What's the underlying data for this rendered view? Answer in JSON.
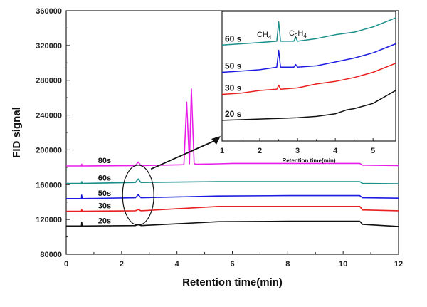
{
  "chart_data": [
    {
      "type": "line",
      "xlabel": "Retention time(min)",
      "ylabel": "FID signal",
      "xlim": [
        0,
        12
      ],
      "ylim": [
        80000,
        360000
      ],
      "xticks": [
        0,
        2,
        4,
        6,
        8,
        10,
        12
      ],
      "xtick_labels": [
        "0",
        "2",
        "4",
        "6",
        "8",
        "10",
        "12"
      ],
      "yticks": [
        80000,
        120000,
        160000,
        200000,
        240000,
        280000,
        320000,
        360000
      ],
      "ytick_labels": [
        "80000",
        "120000",
        "160000",
        "200000",
        "240000",
        "280000",
        "320000",
        "360000"
      ],
      "grid": false,
      "series": [
        {
          "name": "80s",
          "color": "#e81ee8",
          "x": [
            0,
            0.55,
            0.56,
            0.58,
            2.5,
            2.6,
            2.7,
            4.25,
            4.35,
            4.45,
            4.52,
            4.62,
            4.72,
            5.5,
            6,
            8,
            10,
            10.6,
            10.7,
            12
          ],
          "y": [
            181500,
            181500,
            183500,
            181500,
            182000,
            186000,
            182000,
            183000,
            255000,
            184000,
            270000,
            184000,
            183500,
            184000,
            184500,
            184500,
            184500,
            184500,
            182500,
            182000
          ]
        },
        {
          "name": "60s",
          "color": "#1a8f8a",
          "x": [
            0,
            0.55,
            0.56,
            0.58,
            2.5,
            2.6,
            2.7,
            5.5,
            8,
            10.6,
            10.7,
            12
          ],
          "y": [
            161500,
            161500,
            163500,
            161500,
            162500,
            166500,
            162500,
            163500,
            163500,
            163500,
            161500,
            161000
          ]
        },
        {
          "name": "50s",
          "color": "#1c1ce0",
          "x": [
            0,
            0.55,
            0.56,
            0.58,
            2.5,
            2.6,
            2.7,
            5.5,
            8,
            10.6,
            10.7,
            12
          ],
          "y": [
            144000,
            144000,
            148000,
            144000,
            145000,
            148500,
            145000,
            147000,
            147500,
            147500,
            145000,
            144500
          ]
        },
        {
          "name": "30s",
          "color": "#e82020",
          "x": [
            0,
            0.55,
            0.56,
            0.58,
            2.5,
            2.6,
            2.7,
            5.5,
            8,
            10.6,
            10.7,
            12
          ],
          "y": [
            129500,
            129500,
            131500,
            129500,
            130000,
            131500,
            130000,
            135000,
            135000,
            135000,
            131000,
            130000
          ]
        },
        {
          "name": "20s",
          "color": "#111111",
          "x": [
            0,
            0.55,
            0.56,
            0.58,
            2.5,
            2.6,
            2.7,
            5.5,
            8,
            10.6,
            10.7,
            12
          ],
          "y": [
            112500,
            112500,
            117000,
            112500,
            113000,
            114500,
            113000,
            117500,
            118000,
            118000,
            114500,
            112000
          ]
        }
      ]
    },
    {
      "type": "line",
      "xlabel": "Retention time(min)",
      "ylabel": "",
      "xlim": [
        1,
        5.6
      ],
      "xticks": [
        1,
        2,
        3,
        4,
        5
      ],
      "xtick_labels": [
        "1",
        "2",
        "3",
        "4",
        "5"
      ],
      "ylim": [
        0,
        100
      ],
      "peak_labels": [
        {
          "main": "CH",
          "sub": "4",
          "x": 2.3
        },
        {
          "main": "C",
          "sub1": "2",
          "mid": "H",
          "sub2": "4",
          "x": 3.3
        }
      ],
      "series": [
        {
          "name": "60 s",
          "color": "#1a8f8a",
          "x": [
            1,
            1.5,
            2,
            2.45,
            2.5,
            2.55,
            2.9,
            2.95,
            3.0,
            3.5,
            4,
            4.5,
            5,
            5.6
          ],
          "y": [
            74,
            75,
            76,
            77,
            92,
            77,
            77,
            80,
            77,
            79,
            82,
            84,
            88,
            95
          ]
        },
        {
          "name": "50 s",
          "color": "#1c1ce0",
          "x": [
            1,
            1.5,
            2,
            2.45,
            2.5,
            2.55,
            2.9,
            2.95,
            3.0,
            3.5,
            4,
            4.5,
            5,
            5.6
          ],
          "y": [
            53,
            54,
            55,
            57,
            70,
            57,
            57,
            59,
            57,
            58,
            61,
            64,
            68,
            75
          ]
        },
        {
          "name": "30 s",
          "color": "#e82020",
          "x": [
            1,
            1.5,
            2,
            2.45,
            2.5,
            2.55,
            3,
            3.5,
            4,
            4.5,
            5,
            5.6
          ],
          "y": [
            36,
            37,
            39,
            40,
            43,
            40,
            41,
            44,
            46,
            49,
            53,
            60
          ]
        },
        {
          "name": "20 s",
          "color": "#111111",
          "x": [
            1,
            1.5,
            2,
            2.5,
            3,
            3.5,
            4,
            4.3,
            4.5,
            5,
            5.6
          ],
          "y": [
            16,
            16.5,
            17,
            17.5,
            18,
            19,
            21,
            24,
            25,
            29,
            39
          ]
        }
      ]
    }
  ]
}
